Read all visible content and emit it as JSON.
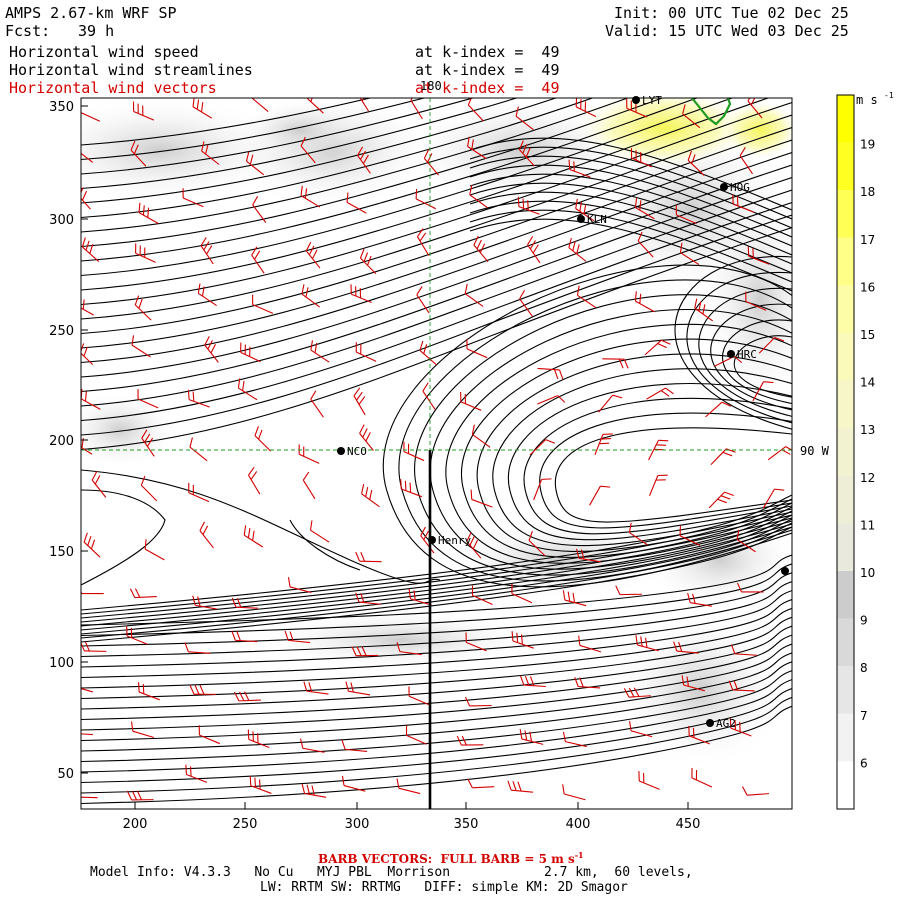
{
  "header": {
    "model_title": "AMPS 2.67-km WRF SP",
    "forecast_label": "Fcst:",
    "forecast_value": "39 h",
    "init_line": "Init: 00 UTC Tue 02 Dec 25",
    "valid_line": "Valid: 15 UTC Wed 03 Dec 25",
    "fields": [
      {
        "name": "Horizontal wind speed",
        "level": "at k-index =  49",
        "color": "#000000"
      },
      {
        "name": "Horizontal wind streamlines",
        "level": "at k-index =  49",
        "color": "#000000"
      },
      {
        "name": "Horizontal wind vectors",
        "level": "at k-index =  49",
        "color": "#d40000"
      }
    ]
  },
  "map": {
    "x_ticks": [
      "200",
      "250",
      "300",
      "350",
      "400",
      "450"
    ],
    "y_ticks": [
      "350",
      "300",
      "250",
      "200",
      "150",
      "100",
      "50"
    ],
    "grid_labels": {
      "meridian": "180",
      "parallel": "90 W"
    },
    "stations": [
      {
        "label": "NCO",
        "marker": "filled-circle"
      },
      {
        "label": "KLN",
        "marker": "filled-circle"
      },
      {
        "label": "HRC",
        "marker": "filled-circle"
      },
      {
        "label": "HOG",
        "marker": "filled-circle"
      },
      {
        "label": "LYT",
        "marker": "filled-circle"
      },
      {
        "label": "Henry",
        "marker": "filled-circle"
      },
      {
        "label": "AG2",
        "marker": "filled-circle"
      },
      {
        "label": "",
        "marker": "filled-circle"
      }
    ],
    "colors": {
      "streamline": "#000000",
      "barb": "#d40000",
      "gridline": "#1f9a1f",
      "coastline": "#1f9a1f",
      "cross_section": "#000000"
    }
  },
  "colorbar": {
    "unit": "m s",
    "unit_exponent": "-1",
    "levels": [
      "6",
      "7",
      "8",
      "9",
      "10",
      "11",
      "12",
      "13",
      "14",
      "15",
      "16",
      "17",
      "18",
      "19"
    ],
    "colors": [
      "#ffffff",
      "#f2f2f2",
      "#e6e6e6",
      "#d9d9d9",
      "#cccccc",
      "#e9e9dd",
      "#eeeed6",
      "#f2f2d0",
      "#f6f6c8",
      "#fafabb",
      "#fdfda8",
      "#ffff88",
      "#ffff55",
      "#ffff22",
      "#ffff00"
    ]
  },
  "footer": {
    "barb_vectors_prefix": "BARB VECTORS:  FULL BARB = 5 m s",
    "barb_vectors_exponent": "-1",
    "model_info_line": "Model Info: V4.3.3   No Cu   MYJ PBL  Morrison            2.7 km,  60 levels,",
    "physics_line": "LW: RRTM SW: RRTMG   DIFF: simple KM: 2D Smagor"
  }
}
